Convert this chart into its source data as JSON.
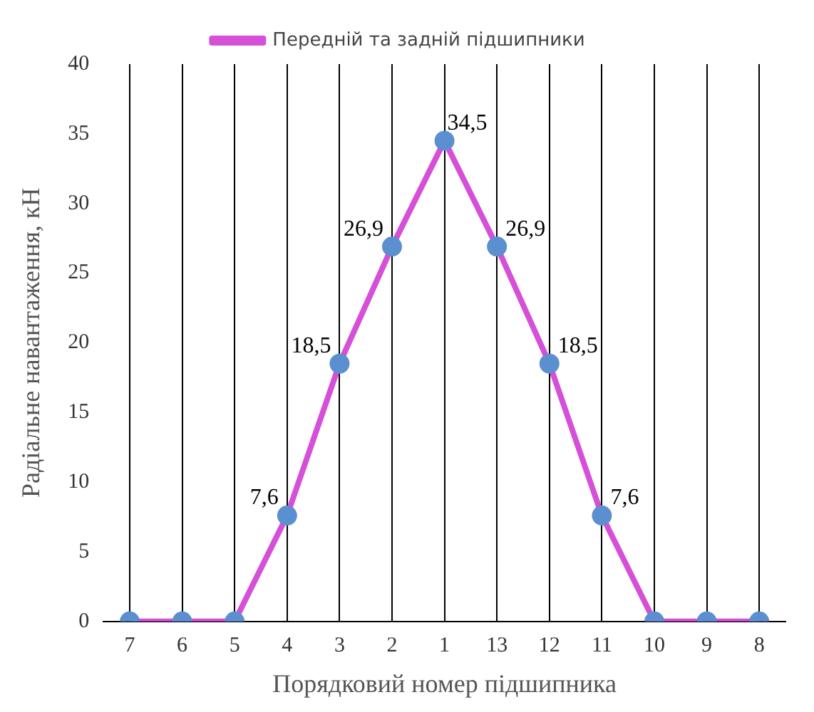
{
  "chart_data": {
    "type": "line",
    "xlabel": "Порядковий номер підшипника",
    "ylabel": "Радіальне навантаження, кН",
    "categories": [
      "7",
      "6",
      "5",
      "4",
      "3",
      "2",
      "1",
      "13",
      "12",
      "11",
      "10",
      "9",
      "8"
    ],
    "series": [
      {
        "name": "Передній та задній підшипники",
        "color": "#d54fd8",
        "values": [
          0,
          0,
          0,
          7.6,
          18.5,
          26.9,
          34.5,
          26.9,
          18.5,
          7.6,
          0,
          0,
          0
        ],
        "value_labels": [
          null,
          null,
          null,
          "7,6",
          "18,5",
          "26,9",
          "34,5",
          "26,9",
          "18,5",
          "7,6",
          null,
          null,
          null
        ]
      }
    ],
    "ylim": [
      0,
      40
    ],
    "yticks": [
      0,
      5,
      10,
      15,
      20,
      25,
      30,
      35,
      40
    ],
    "grid": "x",
    "legend": "top",
    "marker": "circle",
    "line_style": "solid"
  }
}
